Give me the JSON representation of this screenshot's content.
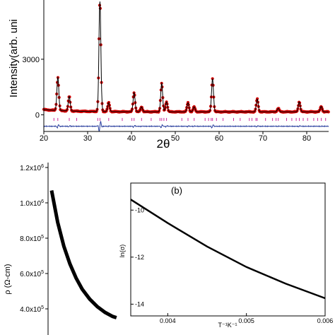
{
  "chart_data": [
    {
      "type": "scatter",
      "panel": "top",
      "title": "",
      "xlabel": "2θ",
      "ylabel": "Intensity(arb. units)",
      "ylabel_visible": "Intensity(arb. uni",
      "xlim": [
        20,
        85
      ],
      "ylim": [
        -900,
        6200
      ],
      "xticks": [
        "20",
        "30",
        "40",
        "50",
        "60",
        "70",
        "80"
      ],
      "yticks": [
        "0",
        "3000"
      ],
      "grid": false,
      "legend": "none",
      "colors": {
        "observed": "#d40000",
        "calculated": "#000000",
        "difference": "#2a3f9e",
        "bragg": "#cc2a9a"
      },
      "peaks": [
        {
          "x": 23.2,
          "y": 1950
        },
        {
          "x": 25.8,
          "y": 950
        },
        {
          "x": 32.8,
          "y": 6100
        },
        {
          "x": 34.8,
          "y": 650
        },
        {
          "x": 40.6,
          "y": 1200
        },
        {
          "x": 42.3,
          "y": 420
        },
        {
          "x": 46.9,
          "y": 1700
        },
        {
          "x": 48.0,
          "y": 700
        },
        {
          "x": 52.9,
          "y": 650
        },
        {
          "x": 54.3,
          "y": 430
        },
        {
          "x": 58.5,
          "y": 1950
        },
        {
          "x": 68.7,
          "y": 850
        },
        {
          "x": 73.5,
          "y": 350
        },
        {
          "x": 78.3,
          "y": 700
        },
        {
          "x": 83.3,
          "y": 450
        }
      ],
      "bragg_positions": [
        22.3,
        23.2,
        25.8,
        27.5,
        32.3,
        32.8,
        34.8,
        37.9,
        40.1,
        40.6,
        42.3,
        44.5,
        46.5,
        46.9,
        47.4,
        48.0,
        51.5,
        52.9,
        54.3,
        56.8,
        57.6,
        58.2,
        58.5,
        59.4,
        60.9,
        63.3,
        64.8,
        66.9,
        67.5,
        68.4,
        68.7,
        70.6,
        72.2,
        73.0,
        73.5,
        75.4,
        76.6,
        77.6,
        78.3,
        79.2,
        80.2,
        81.6,
        82.5,
        83.3,
        84.3
      ]
    },
    {
      "type": "line",
      "panel": "bottom-main",
      "title": "",
      "xlabel": "",
      "ylabel": "ρ (Ω-cm)",
      "ylim": [
        350000,
        1200000
      ],
      "yticks": [
        "4.0x10⁵",
        "6.0x10⁵",
        "8.0x10⁵",
        "1.0x10⁶",
        "1.2x10⁶"
      ],
      "grid": false,
      "legend": "none",
      "points": [
        [
          0.0,
          1070000
        ],
        [
          0.08,
          890000
        ],
        [
          0.16,
          755000
        ],
        [
          0.24,
          655000
        ],
        [
          0.32,
          575000
        ],
        [
          0.4,
          512000
        ],
        [
          0.5,
          455000
        ],
        [
          0.6,
          412000
        ],
        [
          0.7,
          380000
        ],
        [
          0.8,
          357000
        ],
        [
          0.85,
          350000
        ]
      ]
    },
    {
      "type": "line",
      "panel": "bottom-inset",
      "title": "(b)",
      "xlabel": "T⁻¹K⁻¹",
      "ylabel": "ln(σ)",
      "xlim": [
        0.00353,
        0.006
      ],
      "ylim": [
        -14.5,
        -8.85
      ],
      "xticks": [
        "0.004",
        "0.005",
        "0.006"
      ],
      "yticks": [
        "-14",
        "-12",
        "-10"
      ],
      "grid": false,
      "legend": "none",
      "points": [
        [
          0.00353,
          -9.55
        ],
        [
          0.004,
          -10.55
        ],
        [
          0.0045,
          -11.55
        ],
        [
          0.005,
          -12.42
        ],
        [
          0.0055,
          -13.13
        ],
        [
          0.006,
          -13.75
        ]
      ]
    }
  ]
}
